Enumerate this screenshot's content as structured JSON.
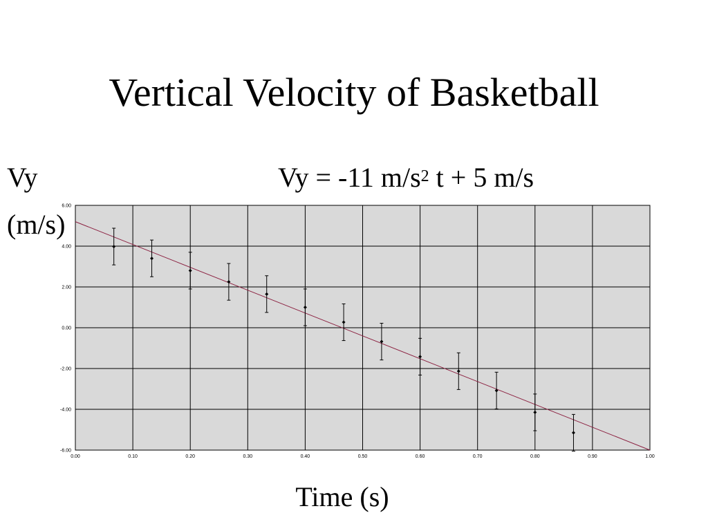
{
  "slide": {
    "title": "Vertical Velocity of Basketball",
    "ylabel_line1": "Vy",
    "ylabel_line2": "(m/s)",
    "equation_pre": "Vy = -11 m/s",
    "equation_sup": "2",
    "equation_post": " t + 5 m/s",
    "xlabel": "Time (s)"
  },
  "chart_data": {
    "type": "scatter",
    "title": "Vertical Velocity of Basketball",
    "xlabel": "Time (s)",
    "ylabel": "Vy (m/s)",
    "xlim": [
      0,
      1
    ],
    "ylim": [
      -6,
      6
    ],
    "grid": true,
    "plot_background": "#d9d9d9",
    "x_ticks": [
      "0.00",
      "0.10",
      "0.20",
      "0.30",
      "0.40",
      "0.50",
      "0.60",
      "0.70",
      "0.80",
      "0.90",
      "1.00"
    ],
    "y_ticks": [
      "6.00",
      "4.00",
      "2.00",
      "0.00",
      "-2.00",
      "-4.00",
      "-6.00"
    ],
    "series": [
      {
        "points": [
          {
            "x": 0.067,
            "y": 3.98,
            "err": 0.9
          },
          {
            "x": 0.133,
            "y": 3.4,
            "err": 0.9
          },
          {
            "x": 0.2,
            "y": 2.8,
            "err": 0.9
          },
          {
            "x": 0.267,
            "y": 2.25,
            "err": 0.9
          },
          {
            "x": 0.333,
            "y": 1.65,
            "err": 0.9
          },
          {
            "x": 0.4,
            "y": 1.0,
            "err": 0.9
          },
          {
            "x": 0.467,
            "y": 0.27,
            "err": 0.9
          },
          {
            "x": 0.533,
            "y": -0.68,
            "err": 0.9
          },
          {
            "x": 0.6,
            "y": -1.42,
            "err": 0.9
          },
          {
            "x": 0.667,
            "y": -2.13,
            "err": 0.9
          },
          {
            "x": 0.733,
            "y": -3.08,
            "err": 0.9
          },
          {
            "x": 0.8,
            "y": -4.15,
            "err": 0.9
          },
          {
            "x": 0.867,
            "y": -5.15,
            "err": 0.9
          }
        ],
        "color": "#000000"
      }
    ],
    "fit_line": {
      "slope": -11.2,
      "intercept": 5.2,
      "color": "#8b2040"
    }
  }
}
